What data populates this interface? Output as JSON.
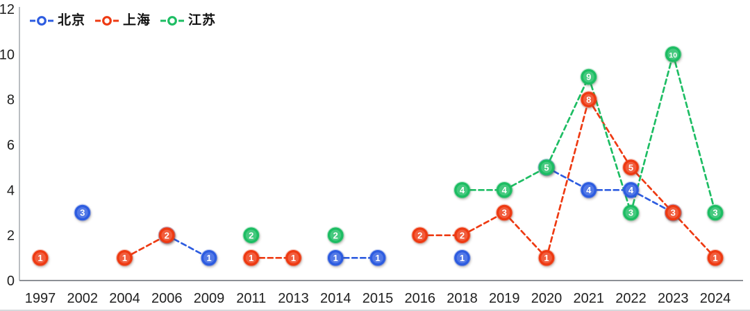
{
  "chart_data": {
    "type": "line",
    "title": "",
    "categories": [
      "1997",
      "2002",
      "2004",
      "2006",
      "2009",
      "2011",
      "2013",
      "2014",
      "2015",
      "2016",
      "2018",
      "2019",
      "2020",
      "2021",
      "2022",
      "2023",
      "2024"
    ],
    "series": [
      {
        "name": "北京",
        "color": "#2d5ce0",
        "values": [
          null,
          3,
          null,
          2,
          1,
          null,
          null,
          1,
          1,
          null,
          1,
          null,
          5,
          4,
          4,
          3,
          null
        ]
      },
      {
        "name": "上海",
        "color": "#ee3a12",
        "values": [
          1,
          null,
          1,
          2,
          null,
          1,
          1,
          null,
          null,
          2,
          2,
          3,
          1,
          8,
          5,
          3,
          1
        ]
      },
      {
        "name": "江苏",
        "color": "#1dbd63",
        "values": [
          null,
          null,
          null,
          null,
          null,
          2,
          null,
          2,
          null,
          null,
          4,
          4,
          5,
          9,
          3,
          10,
          3
        ]
      }
    ],
    "ylim": [
      0,
      12
    ],
    "yticks": [
      0,
      2,
      4,
      6,
      8,
      10,
      12
    ],
    "grid": false,
    "legend_position": "top-left",
    "line_style": "dashed",
    "connect_rule": "segments drawn only between adjacent year categories",
    "marker_style": "circled number in series color with white digit",
    "hidden_overlapping_points": [
      {
        "series": "北京",
        "x": "2006",
        "y": 2,
        "covered_by": "上海"
      },
      {
        "series": "北京",
        "x": "2020",
        "y": 5,
        "covered_by": "江苏"
      },
      {
        "series": "北京",
        "x": "2023",
        "y": 3,
        "covered_by": "上海"
      }
    ]
  }
}
